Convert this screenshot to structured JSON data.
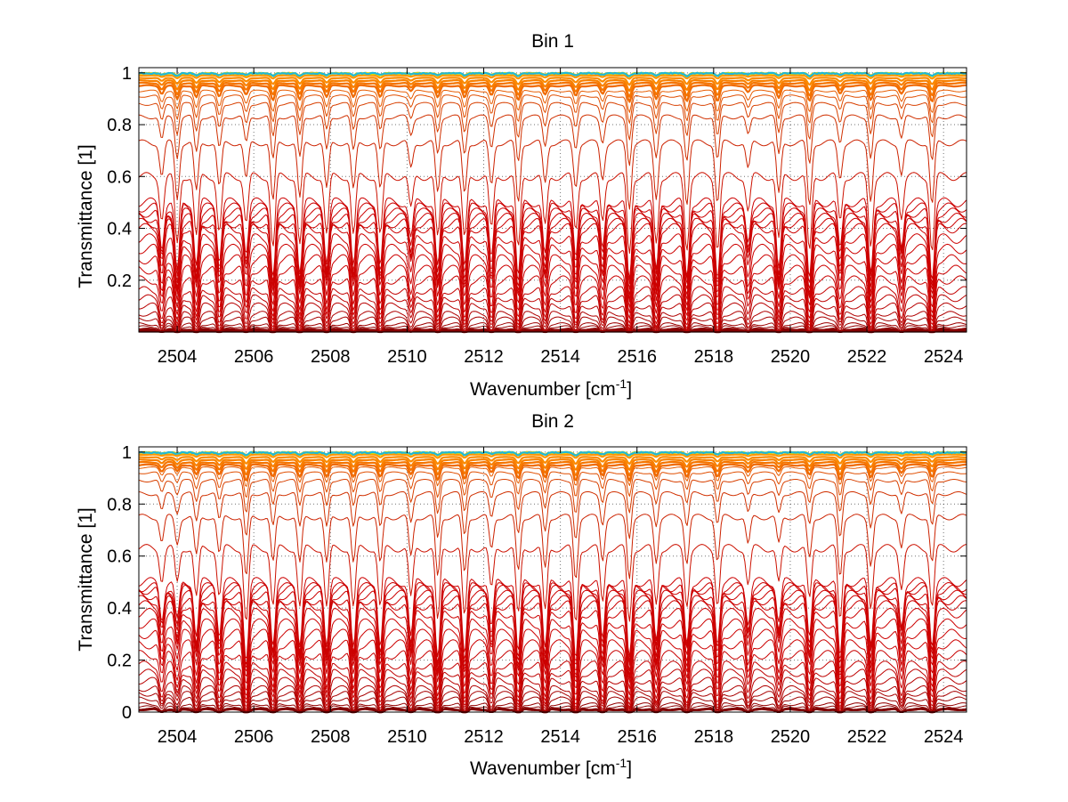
{
  "chart_data": [
    {
      "type": "line",
      "title": "Bin 1",
      "xlabel": "Wavenumber [cm",
      "xlabel_sup": "-1",
      "xlabel_close": "]",
      "ylabel": "Transmittance [1]",
      "xlim": [
        2503.0,
        2524.6
      ],
      "ylim": [
        0.0,
        1.02
      ],
      "grid": true,
      "x_ticks": [
        2504,
        2506,
        2508,
        2510,
        2512,
        2514,
        2516,
        2518,
        2520,
        2522,
        2524
      ],
      "x_tick_labels": [
        "2504",
        "2506",
        "2508",
        "2510",
        "2512",
        "2514",
        "2516",
        "2518",
        "2520",
        "2522",
        "2524"
      ],
      "y_ticks": [
        0.2,
        0.4,
        0.6,
        0.8,
        1.0
      ],
      "y_tick_labels": [
        "0.2",
        "0.4",
        "0.6",
        "0.8",
        "1"
      ],
      "absorption_line_centers_cm-1": [
        2503.6,
        2504.0,
        2504.5,
        2505.1,
        2505.8,
        2506.5,
        2507.2,
        2507.9,
        2508.6,
        2509.3,
        2510.1,
        2510.8,
        2511.5,
        2512.2,
        2512.9,
        2513.6,
        2514.4,
        2515.1,
        2515.8,
        2516.5,
        2517.3,
        2518.1,
        2518.9,
        2519.7,
        2520.5,
        2521.3,
        2522.1,
        2522.9,
        2523.7
      ],
      "series_baseline_transmittance": [
        0.0,
        0.0,
        0.01,
        0.02,
        0.03,
        0.05,
        0.07,
        0.1,
        0.13,
        0.16,
        0.2,
        0.24,
        0.28,
        0.32,
        0.36,
        0.4,
        0.42,
        0.44,
        0.46,
        0.48,
        0.5,
        0.6,
        0.73,
        0.83,
        0.88,
        0.91,
        0.93,
        0.95,
        0.96,
        0.97,
        0.98,
        0.99,
        1.0,
        1.0,
        1.0,
        1.0
      ],
      "series_colors": [
        "#7f0000",
        "#7f0000",
        "#8a0000",
        "#940000",
        "#9e0000",
        "#a80000",
        "#b00000",
        "#b80000",
        "#be0000",
        "#c40000",
        "#c80000",
        "#cc0000",
        "#cc0000",
        "#cc0000",
        "#cc0000",
        "#cc0000",
        "#cc0000",
        "#cc0000",
        "#cc0000",
        "#cc0000",
        "#cc0000",
        "#cc1100",
        "#cc2200",
        "#d03000",
        "#d84000",
        "#e04e00",
        "#e85c00",
        "#f06a00",
        "#f57500",
        "#f88000",
        "#fb8a00",
        "#ff9600",
        "#ffb000",
        "#ffd400",
        "#d8e000",
        "#20b8d8"
      ]
    },
    {
      "type": "line",
      "title": "Bin 2",
      "xlabel": "Wavenumber [cm",
      "xlabel_sup": "-1",
      "xlabel_close": "]",
      "ylabel": "Transmittance [1]",
      "xlim": [
        2503.0,
        2524.6
      ],
      "ylim": [
        0.0,
        1.02
      ],
      "grid": true,
      "x_ticks": [
        2504,
        2506,
        2508,
        2510,
        2512,
        2514,
        2516,
        2518,
        2520,
        2522,
        2524
      ],
      "x_tick_labels": [
        "2504",
        "2506",
        "2508",
        "2510",
        "2512",
        "2514",
        "2516",
        "2518",
        "2520",
        "2522",
        "2524"
      ],
      "y_ticks": [
        0.0,
        0.2,
        0.4,
        0.6,
        0.8,
        1.0
      ],
      "y_tick_labels": [
        "0",
        "0.2",
        "0.4",
        "0.6",
        "0.8",
        "1"
      ],
      "absorption_line_centers_cm-1": [
        2503.6,
        2504.0,
        2504.5,
        2505.1,
        2505.8,
        2506.5,
        2507.2,
        2507.9,
        2508.6,
        2509.3,
        2510.1,
        2510.8,
        2511.5,
        2512.2,
        2512.9,
        2513.6,
        2514.4,
        2515.1,
        2515.8,
        2516.5,
        2517.3,
        2518.1,
        2518.9,
        2519.7,
        2520.5,
        2521.3,
        2522.1,
        2522.9,
        2523.7
      ],
      "series_baseline_transmittance": [
        0.01,
        0.01,
        0.02,
        0.03,
        0.05,
        0.07,
        0.09,
        0.12,
        0.15,
        0.18,
        0.22,
        0.26,
        0.3,
        0.34,
        0.38,
        0.41,
        0.43,
        0.45,
        0.47,
        0.48,
        0.5,
        0.63,
        0.75,
        0.84,
        0.89,
        0.92,
        0.94,
        0.95,
        0.96,
        0.97,
        0.98,
        0.99,
        1.0,
        1.0,
        1.0,
        1.0
      ],
      "series_colors": [
        "#7f0000",
        "#7f0000",
        "#8a0000",
        "#940000",
        "#9e0000",
        "#a80000",
        "#b00000",
        "#b80000",
        "#be0000",
        "#c40000",
        "#c80000",
        "#cc0000",
        "#cc0000",
        "#cc0000",
        "#cc0000",
        "#cc0000",
        "#cc0000",
        "#cc0000",
        "#cc0000",
        "#cc0000",
        "#cc0000",
        "#cc1100",
        "#cc2200",
        "#d03000",
        "#d84000",
        "#e04e00",
        "#e85c00",
        "#f06a00",
        "#f57500",
        "#f88000",
        "#fb8a00",
        "#ff9600",
        "#ffb000",
        "#ffd400",
        "#d8e000",
        "#20b8d8"
      ]
    }
  ]
}
